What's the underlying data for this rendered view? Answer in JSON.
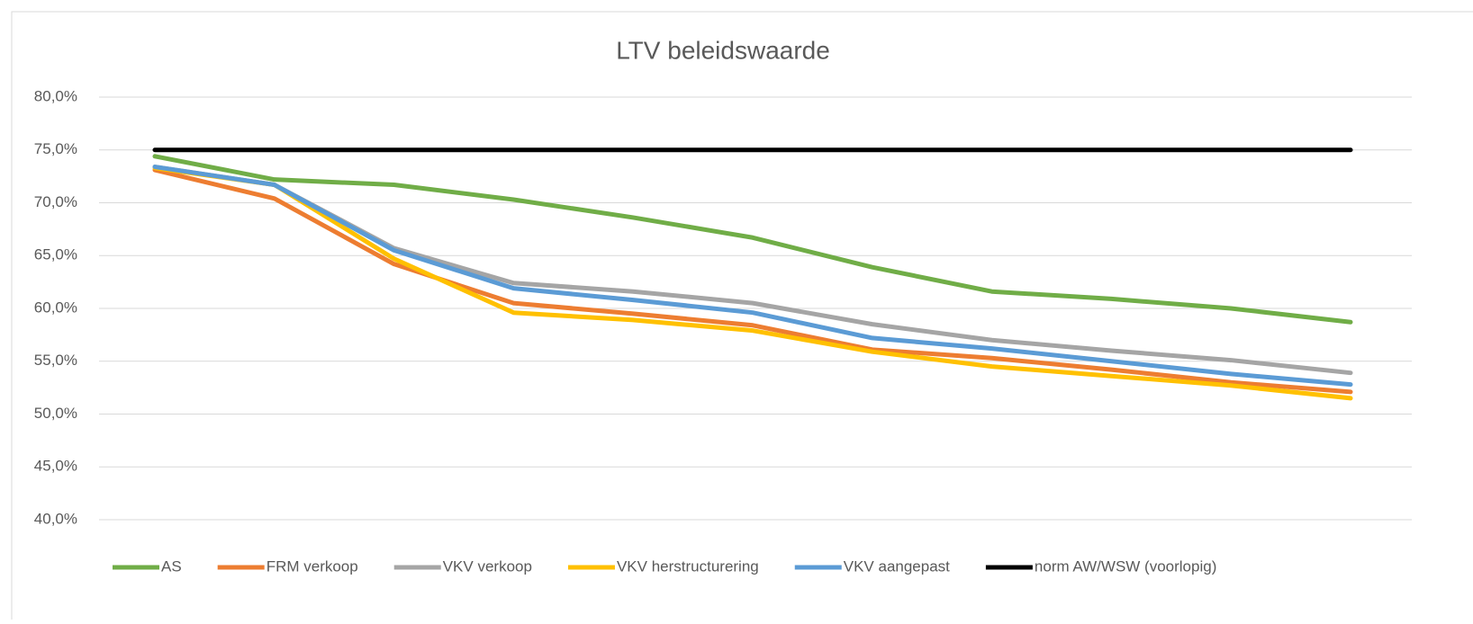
{
  "chart_data": {
    "type": "line",
    "title": "LTV beleidswaarde",
    "categories": [
      null,
      null,
      null,
      null,
      null,
      null,
      null,
      null,
      null,
      null,
      null
    ],
    "series": [
      {
        "name": "AS",
        "color": "#70ad47",
        "values": [
          74.4,
          72.2,
          71.7,
          70.3,
          68.6,
          66.7,
          63.9,
          61.6,
          60.9,
          60.0,
          58.7
        ]
      },
      {
        "name": "FRM verkoop",
        "color": "#ed7d31",
        "values": [
          73.1,
          70.4,
          64.2,
          60.5,
          59.5,
          58.4,
          56.1,
          55.3,
          54.2,
          53.0,
          52.1
        ]
      },
      {
        "name": "VKV verkoop",
        "color": "#a5a5a5",
        "values": [
          73.4,
          71.7,
          65.7,
          62.4,
          61.6,
          60.5,
          58.5,
          57.0,
          56.0,
          55.1,
          53.9
        ]
      },
      {
        "name": "VKV herstructurering",
        "color": "#ffc000",
        "values": [
          73.3,
          71.7,
          64.7,
          59.6,
          58.9,
          57.9,
          55.9,
          54.5,
          53.6,
          52.7,
          51.5
        ]
      },
      {
        "name": "VKV aangepast",
        "color": "#5b9bd5",
        "values": [
          73.4,
          71.7,
          65.5,
          61.9,
          60.8,
          59.6,
          57.2,
          56.2,
          55.0,
          53.8,
          52.8
        ]
      },
      {
        "name": "norm AW/WSW (voorlopig)",
        "color": "#000000",
        "values": [
          75,
          75,
          75,
          75,
          75,
          75,
          75,
          75,
          75,
          75,
          75
        ]
      }
    ],
    "ylim": [
      40,
      80
    ],
    "yticks": [
      {
        "value": 40,
        "label": "40,0%"
      },
      {
        "value": 45,
        "label": "45,0%"
      },
      {
        "value": 50,
        "label": "50,0%"
      },
      {
        "value": 55,
        "label": "55,0%"
      },
      {
        "value": 60,
        "label": "60,0%"
      },
      {
        "value": 65,
        "label": "65,0%"
      },
      {
        "value": 70,
        "label": "70,0%"
      },
      {
        "value": 75,
        "label": "75,0%"
      },
      {
        "value": 80,
        "label": "80,0%"
      }
    ],
    "grid": true,
    "legend": "bottom"
  }
}
